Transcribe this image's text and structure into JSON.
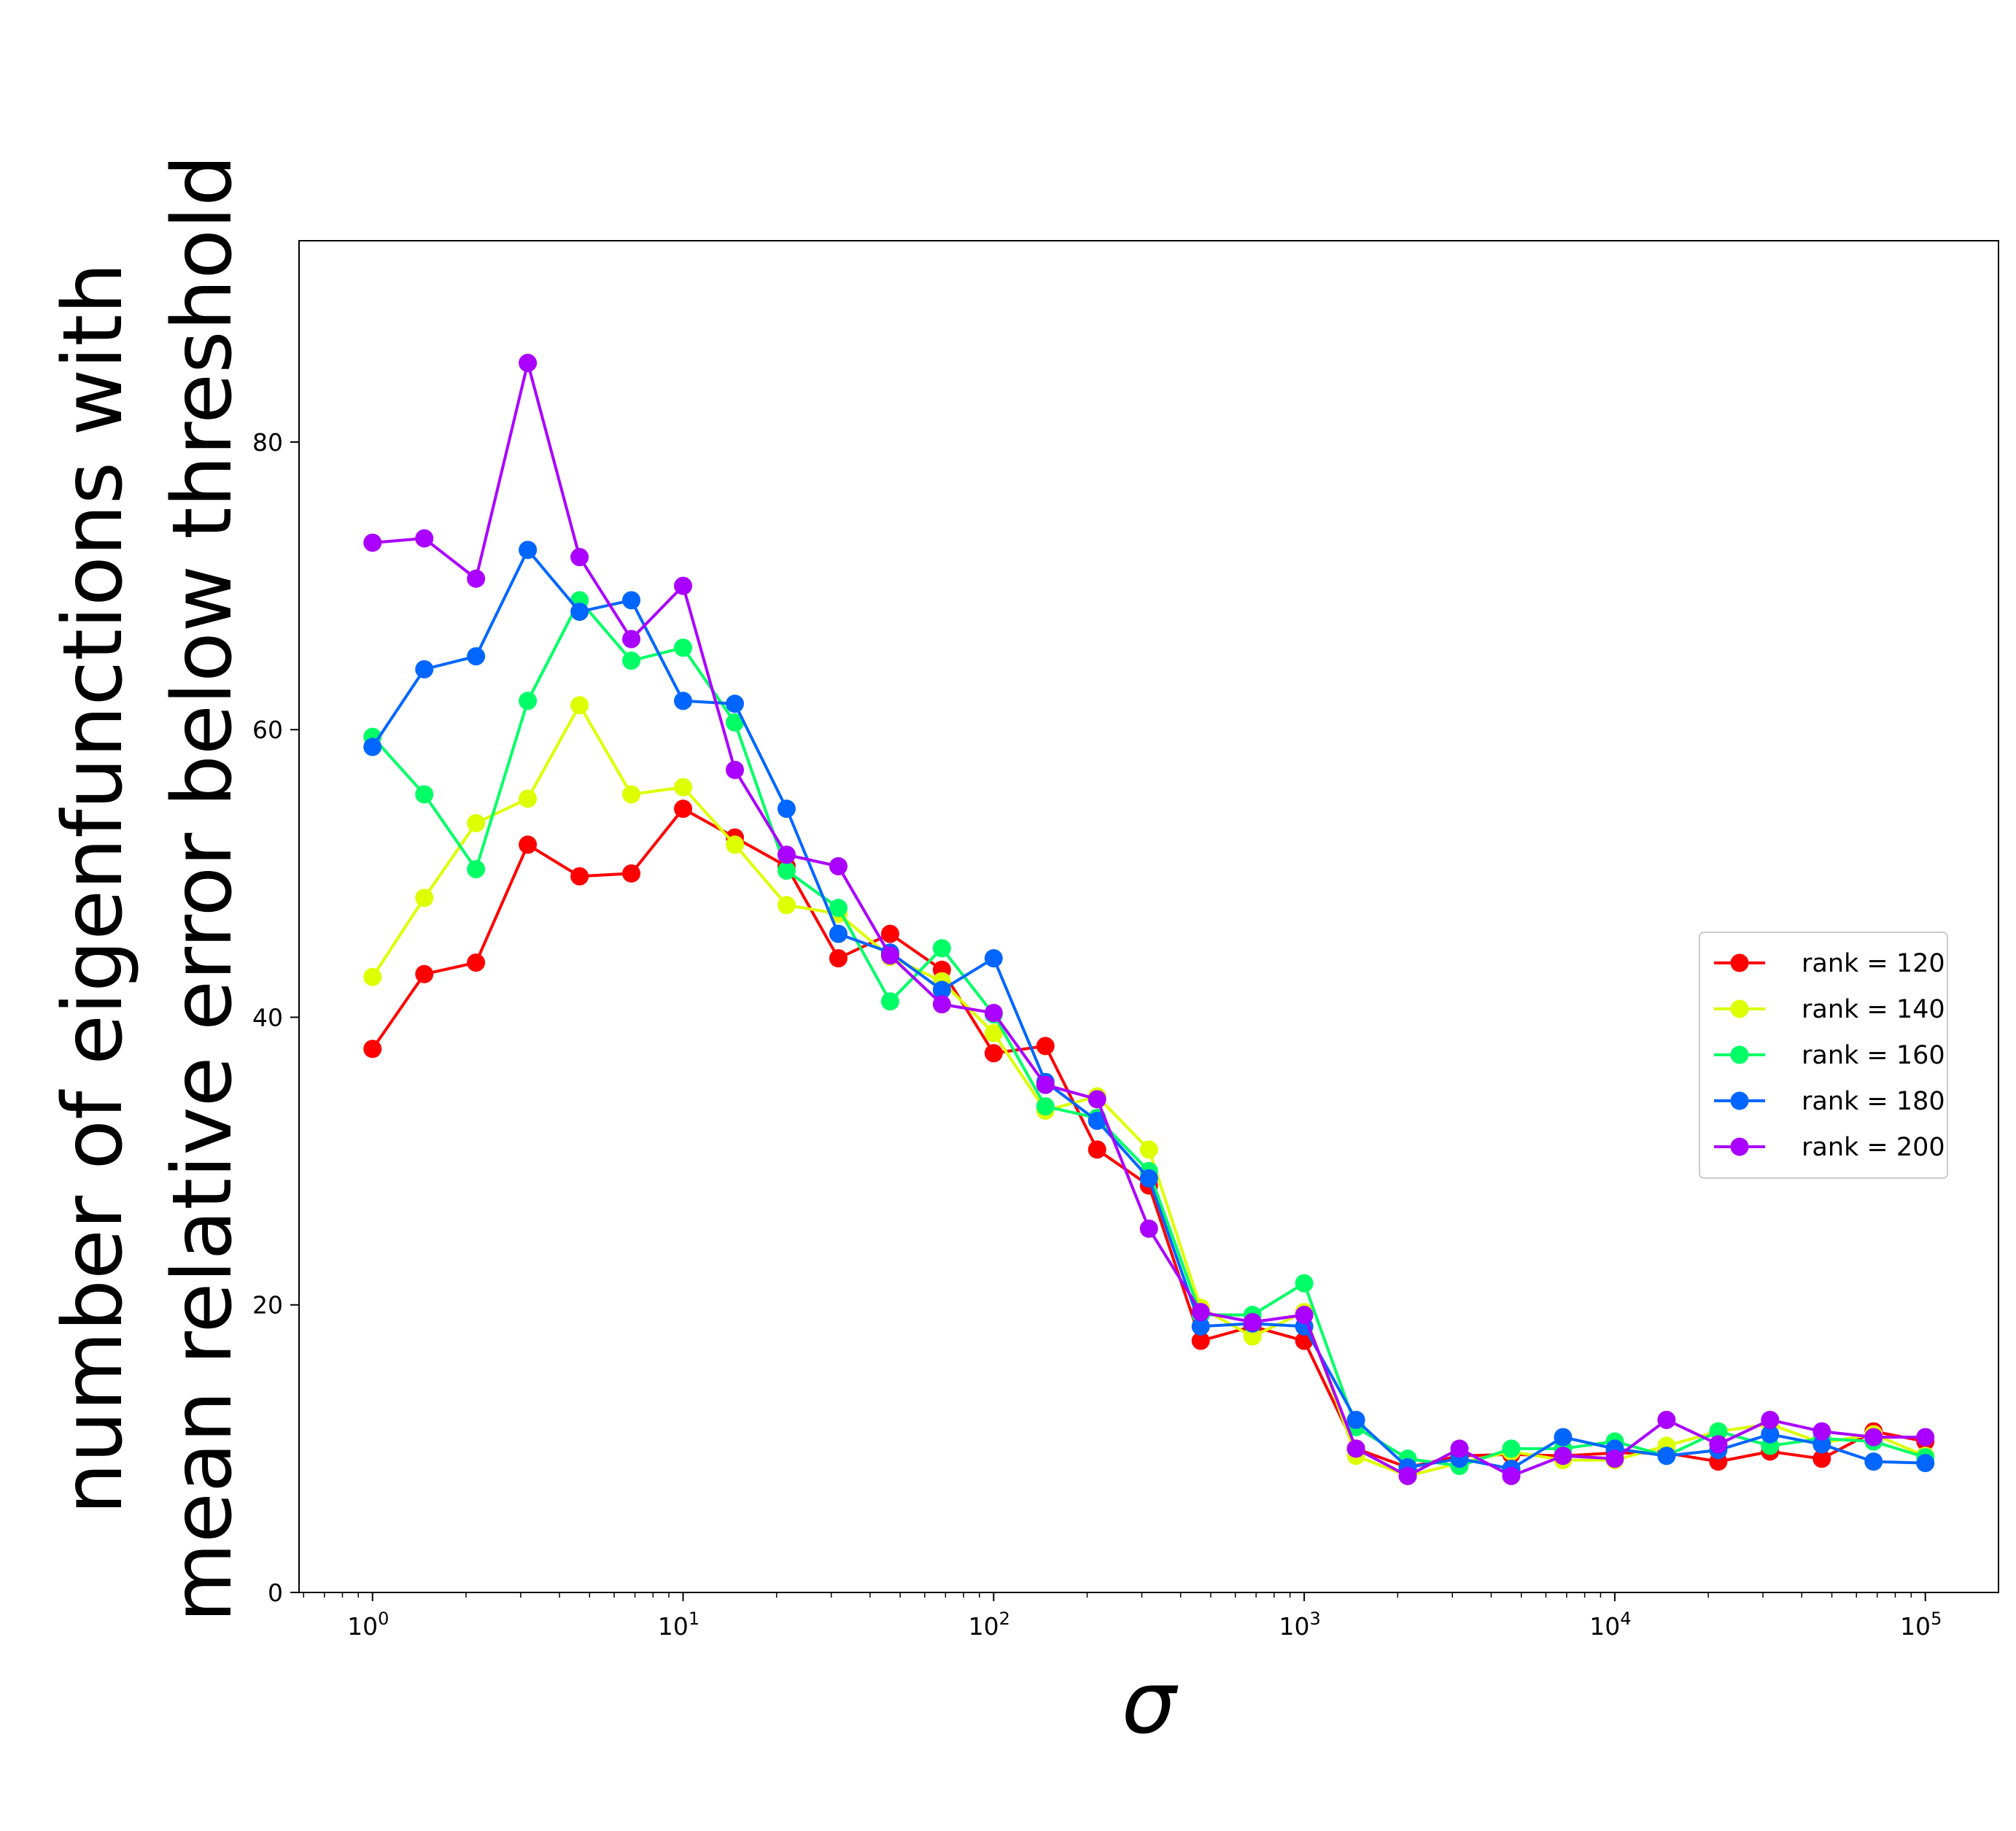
{
  "chart_data": {
    "type": "line",
    "title": "",
    "xlabel": "σ",
    "ylabel_lines": [
      "number of eigenfunctions with",
      "mean relative error below threshold"
    ],
    "x_scale": "log",
    "xlim": [
      0.58,
      172000
    ],
    "ylim": [
      0,
      94
    ],
    "x_ticks": [
      {
        "value": 1,
        "base": "10",
        "exp": "0"
      },
      {
        "value": 10,
        "base": "10",
        "exp": "1"
      },
      {
        "value": 100,
        "base": "10",
        "exp": "2"
      },
      {
        "value": 1000,
        "base": "10",
        "exp": "3"
      },
      {
        "value": 10000,
        "base": "10",
        "exp": "4"
      },
      {
        "value": 100000,
        "base": "10",
        "exp": "5"
      }
    ],
    "y_ticks": [
      {
        "value": 0,
        "label": "0"
      },
      {
        "value": 20,
        "label": "20"
      },
      {
        "value": 40,
        "label": "40"
      },
      {
        "value": 60,
        "label": "60"
      },
      {
        "value": 80,
        "label": "80"
      }
    ],
    "grid": false,
    "legend_position": "center-right",
    "x": [
      1,
      1.468,
      2.154,
      3.162,
      4.642,
      6.813,
      10,
      14.68,
      21.54,
      31.62,
      46.42,
      68.13,
      100,
      146.8,
      215.4,
      316.2,
      464.2,
      681.3,
      1000,
      1468,
      2154,
      3162,
      4642,
      6813,
      10000,
      14678,
      21544,
      31623,
      46416,
      68129,
      100000
    ],
    "series": [
      {
        "name": "rank = 120",
        "color": "#ff0000",
        "values": [
          37.8,
          43.0,
          43.8,
          52.0,
          49.8,
          50.0,
          54.5,
          52.5,
          50.5,
          44.1,
          45.8,
          43.3,
          37.5,
          38.0,
          30.8,
          28.3,
          17.5,
          18.5,
          17.5,
          10.0,
          8.7,
          9.5,
          9.6,
          9.5,
          9.7,
          9.7,
          9.1,
          9.8,
          9.3,
          11.2,
          10.5
        ]
      },
      {
        "name": "rank = 140",
        "color": "#ddff00",
        "values": [
          42.8,
          48.3,
          53.5,
          55.2,
          61.7,
          55.5,
          56.0,
          52.0,
          47.8,
          47.2,
          44.2,
          42.5,
          38.9,
          33.5,
          34.5,
          30.8,
          19.8,
          17.8,
          19.5,
          9.5,
          8.1,
          9.0,
          9.8,
          9.2,
          9.2,
          10.2,
          11.2,
          11.7,
          10.4,
          11.0,
          9.5
        ]
      },
      {
        "name": "rank = 160",
        "color": "#00ff66",
        "values": [
          59.5,
          55.5,
          50.3,
          62.0,
          69.0,
          64.8,
          65.7,
          60.5,
          50.2,
          47.6,
          41.1,
          44.8,
          40.2,
          33.8,
          33.0,
          29.3,
          19.3,
          19.3,
          21.5,
          11.5,
          9.3,
          8.8,
          10.0,
          10.0,
          10.5,
          9.5,
          11.2,
          10.2,
          10.7,
          10.5,
          9.4
        ]
      },
      {
        "name": "rank = 180",
        "color": "#0066ff",
        "values": [
          58.8,
          64.2,
          65.1,
          72.5,
          68.2,
          69.0,
          62.0,
          61.8,
          54.5,
          45.8,
          44.5,
          41.9,
          44.1,
          35.5,
          32.8,
          28.8,
          18.5,
          18.7,
          18.5,
          12.0,
          8.7,
          9.3,
          8.6,
          10.8,
          10.0,
          9.5,
          9.9,
          11.0,
          10.3,
          9.1,
          9.0
        ]
      },
      {
        "name": "rank = 200",
        "color": "#aa00ff",
        "values": [
          73.0,
          73.3,
          70.5,
          85.5,
          72.0,
          66.3,
          70.0,
          57.2,
          51.3,
          50.5,
          44.3,
          40.9,
          40.3,
          35.3,
          34.3,
          25.3,
          19.5,
          18.8,
          19.3,
          10.0,
          8.1,
          10.0,
          8.1,
          9.5,
          9.3,
          12.0,
          10.3,
          12.0,
          11.2,
          10.8,
          10.8
        ]
      }
    ]
  }
}
